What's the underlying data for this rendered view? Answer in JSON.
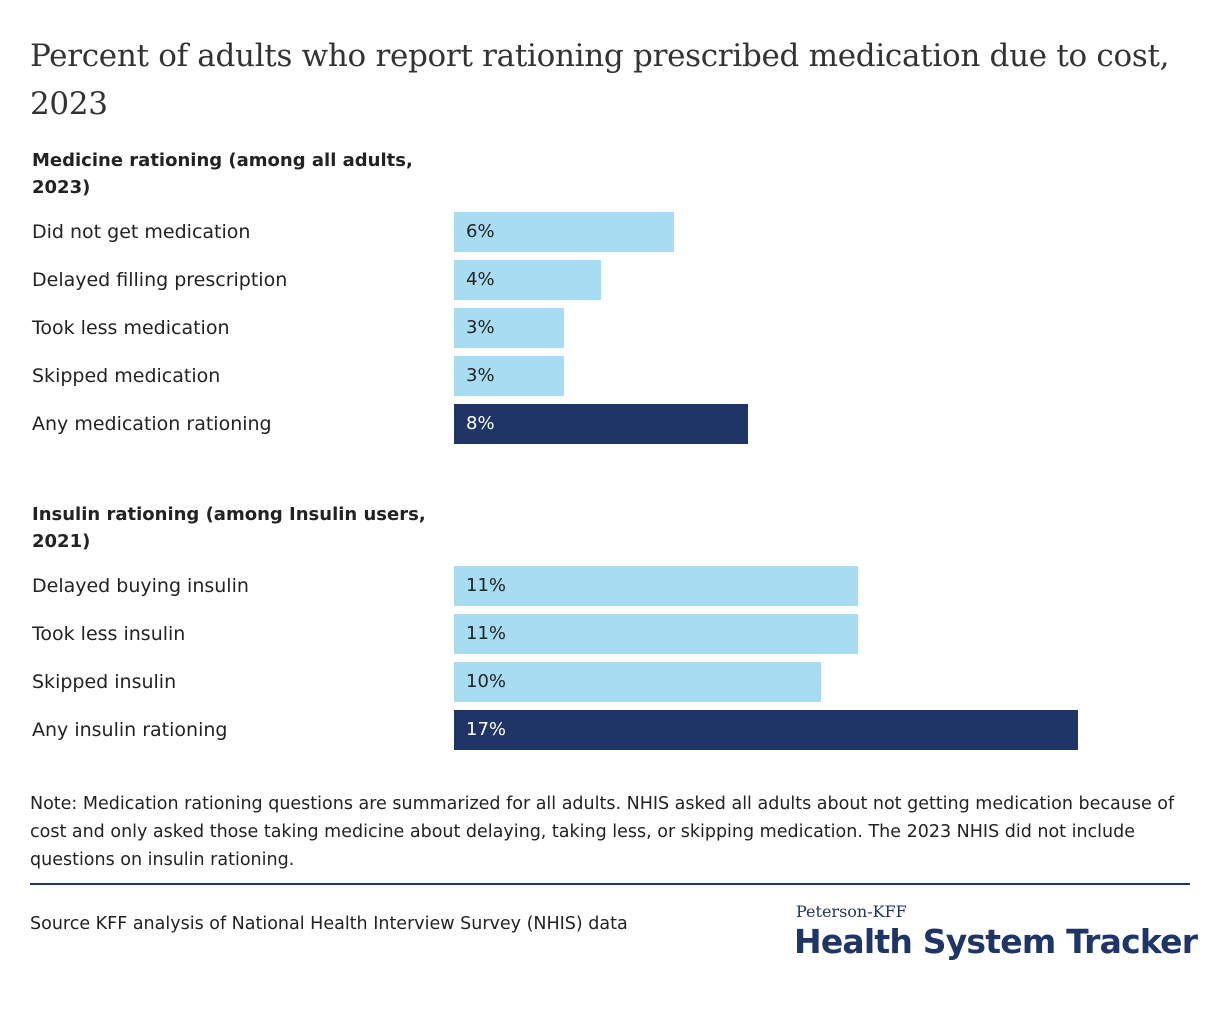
{
  "title": "Percent of adults who report rationing prescribed medication due to cost, 2023",
  "note": "Note: Medication rationing questions are summarized for all adults. NHIS asked all adults about not getting medication because of cost and only asked those taking medicine about delaying, taking less, or skipping medication. The 2023 NHIS did not include questions on insulin rationing.",
  "source": "Source KFF analysis of National Health Interview Survey (NHIS) data",
  "logo": {
    "top_line": "Peterson-KFF",
    "main_line": "Health System Tracker"
  },
  "colors": {
    "light_bar": "#a8dcf3",
    "dark_bar": "#1f3566",
    "light_text": "#222222",
    "dark_text": "#ffffff"
  },
  "chart_data": [
    {
      "type": "bar",
      "orientation": "horizontal",
      "heading": "Medicine rationing (among all adults, 2023)",
      "categories": [
        "Did not get medication",
        "Delayed filling prescription",
        "Took less medication",
        "Skipped medication",
        "Any medication rationing"
      ],
      "values": [
        6,
        4,
        3,
        3,
        8
      ],
      "labels": [
        "6%",
        "4%",
        "3%",
        "3%",
        "8%"
      ],
      "highlight": [
        false,
        false,
        false,
        false,
        true
      ]
    },
    {
      "type": "bar",
      "orientation": "horizontal",
      "heading": "Insulin rationing (among Insulin users, 2021)",
      "categories": [
        "Delayed buying insulin",
        "Took less insulin",
        "Skipped insulin",
        "Any insulin rationing"
      ],
      "values": [
        11,
        11,
        10,
        17
      ],
      "labels": [
        "11%",
        "11%",
        "10%",
        "17%"
      ],
      "highlight": [
        false,
        false,
        false,
        true
      ]
    }
  ]
}
